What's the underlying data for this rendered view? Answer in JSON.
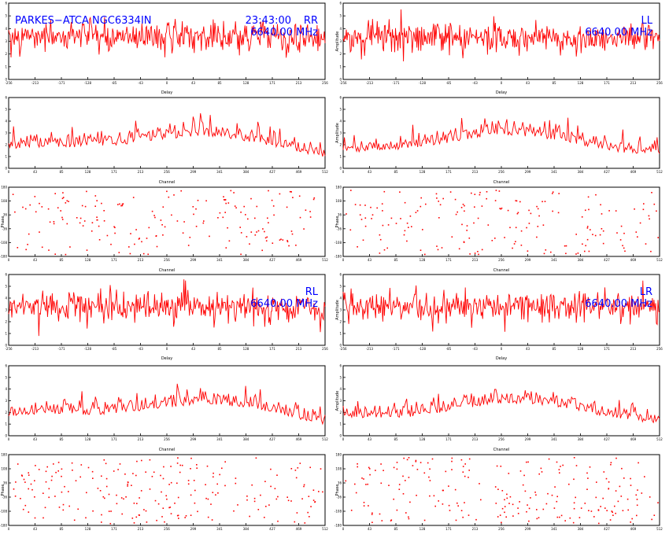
{
  "header": {
    "source": "PARKES−ATCA NGC6334IN",
    "time": "23:43:00"
  },
  "colors": {
    "trace": "#ff0000",
    "annotation": "#0000ff",
    "frame": "#000000"
  },
  "chart_data": [
    {
      "id": "rr-delay",
      "type": "line",
      "pol": "RR",
      "freq": "6640.00 MHz",
      "xlabel": "Delay",
      "ylabel": "",
      "xrange": [
        -256,
        256
      ],
      "points": 400,
      "noise": "flat"
    },
    {
      "id": "ll-delay",
      "type": "line",
      "pol": "LL",
      "freq": "6640.00 MHz",
      "xlabel": "Delay",
      "ylabel": "Amplitude",
      "xrange": [
        -256,
        256
      ],
      "points": 400,
      "noise": "flat"
    },
    {
      "id": "rr-channel",
      "type": "line",
      "xlabel": "Channel",
      "ylabel": "",
      "xrange": [
        0,
        512
      ],
      "points": 260,
      "noise": "hump"
    },
    {
      "id": "ll-channel",
      "type": "line",
      "xlabel": "Channel",
      "ylabel": "Amplitude",
      "xrange": [
        0,
        512
      ],
      "points": 260,
      "noise": "hump"
    },
    {
      "id": "rr-phase",
      "type": "scatter",
      "xlabel": "Channel",
      "ylabel": "Phase",
      "xrange": [
        0,
        512
      ],
      "yrange": [
        -180,
        180
      ],
      "points": 180
    },
    {
      "id": "ll-phase",
      "type": "scatter",
      "xlabel": "Channel",
      "ylabel": "Phase",
      "xrange": [
        0,
        512
      ],
      "yrange": [
        -180,
        180
      ],
      "points": 180
    },
    {
      "id": "rl-delay",
      "type": "line",
      "pol": "RL",
      "freq": "6640.00 MHz",
      "xlabel": "Delay",
      "ylabel": "",
      "xrange": [
        -256,
        256
      ],
      "points": 400,
      "noise": "flat"
    },
    {
      "id": "lr-delay",
      "type": "line",
      "pol": "LR",
      "freq": "6640.00 MHz",
      "xlabel": "Delay",
      "ylabel": "Amplitude",
      "xrange": [
        -256,
        256
      ],
      "points": 400,
      "noise": "flat"
    },
    {
      "id": "rl-channel",
      "type": "line",
      "xlabel": "Channel",
      "ylabel": "",
      "xrange": [
        0,
        512
      ],
      "points": 260,
      "noise": "hump"
    },
    {
      "id": "lr-channel",
      "type": "line",
      "xlabel": "Channel",
      "ylabel": "Amplitude",
      "xrange": [
        0,
        512
      ],
      "points": 260,
      "noise": "hump"
    },
    {
      "id": "rl-phase",
      "type": "scatter",
      "xlabel": "Channel",
      "ylabel": "Phase",
      "xrange": [
        0,
        512
      ],
      "yrange": [
        -180,
        180
      ],
      "points": 220
    },
    {
      "id": "lr-phase",
      "type": "scatter",
      "xlabel": "Channel",
      "ylabel": "Phase",
      "xrange": [
        0,
        512
      ],
      "yrange": [
        -180,
        180
      ],
      "points": 220
    }
  ]
}
